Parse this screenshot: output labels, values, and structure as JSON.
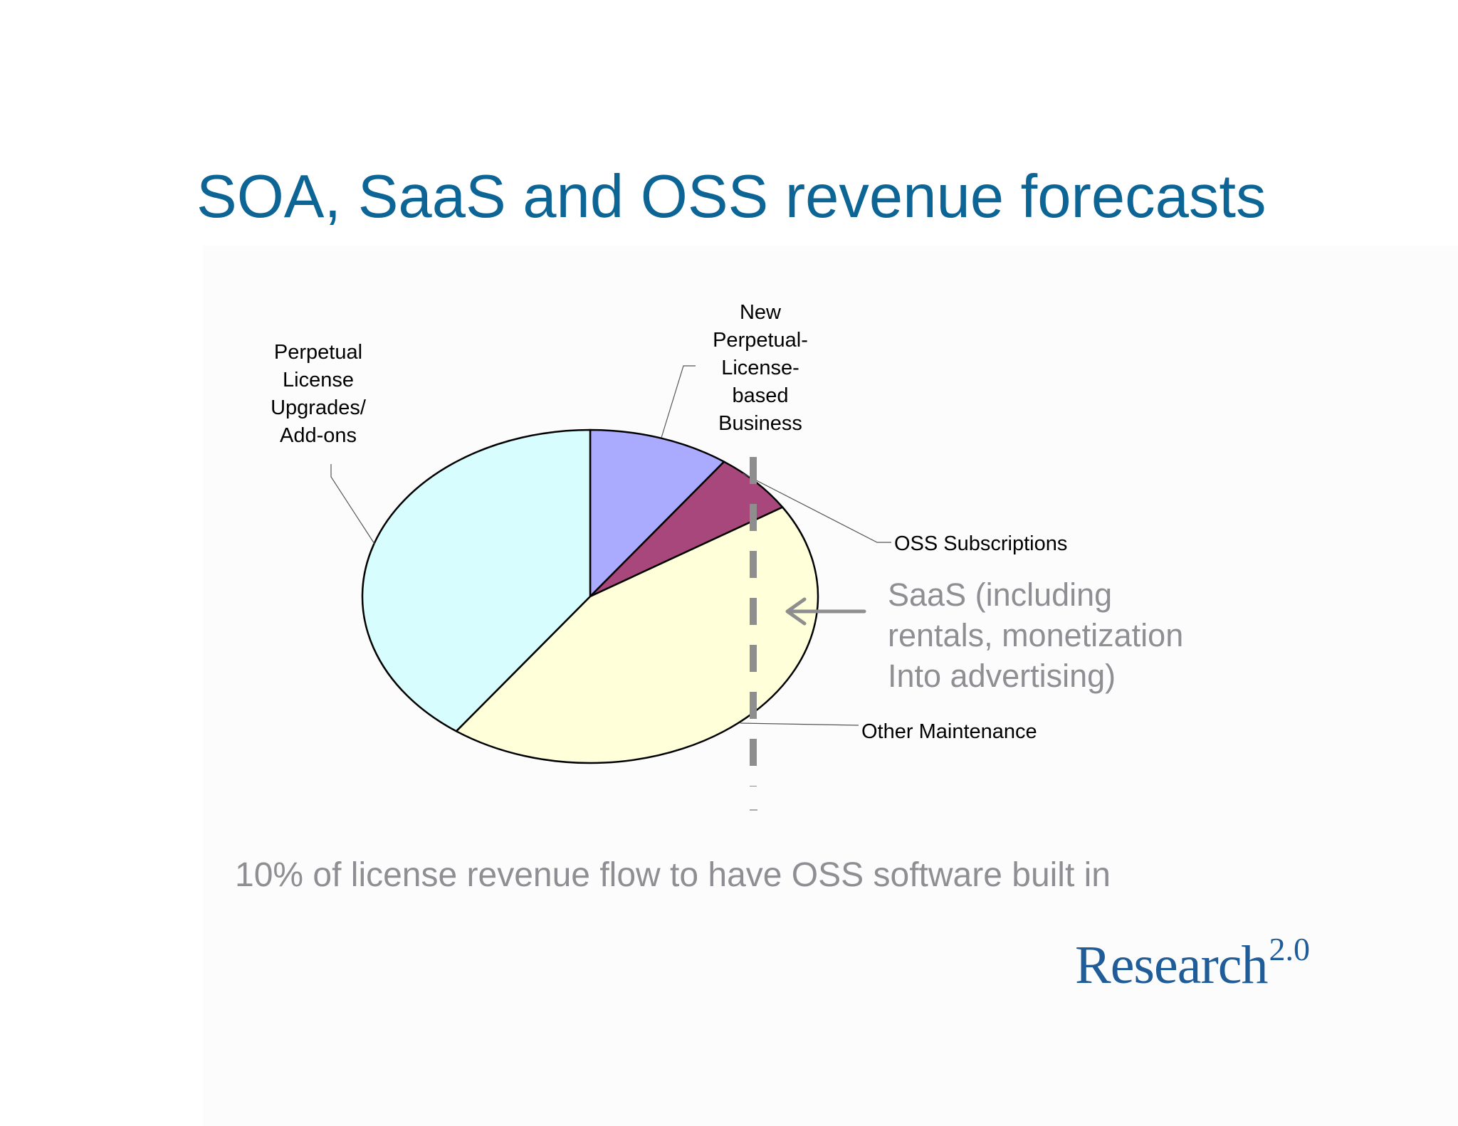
{
  "slide": {
    "title": "SOA, SaaS and OSS revenue forecasts",
    "footnote": "10% of license revenue flow to have OSS software built in",
    "callout": {
      "lines": [
        "SaaS (including",
        "rentals, monetization",
        "Into advertising)"
      ],
      "arrow_icon": "left-arrow-icon"
    },
    "logo": {
      "text": "Research",
      "superscript": "2.0"
    }
  },
  "colors": {
    "title": "#0d6596",
    "gray_text": "#8e8e93",
    "divider": "#8e8e8e",
    "logo": "#1f5c98",
    "outline": "#000000"
  },
  "chart_data": {
    "type": "pie",
    "title": "",
    "start_angle_degrees": 0,
    "direction": "clockwise",
    "slices": [
      {
        "label": "New Perpetual-License-based Business",
        "label_lines": [
          "New",
          "Perpetual-",
          "License-",
          "based",
          "Business"
        ],
        "value": 10,
        "color": "#aaaafe"
      },
      {
        "label": "OSS Subscriptions",
        "label_lines": [
          "OSS Subscriptions"
        ],
        "value": 6,
        "color": "#a8477b"
      },
      {
        "label": "Other Maintenance",
        "label_lines": [
          "Other Maintenance"
        ],
        "value": 44,
        "color": "#ffffd9"
      },
      {
        "label": "Perpetual License Upgrades/ Add-ons",
        "label_lines": [
          "Perpetual",
          "License",
          "Upgrades/",
          "Add-ons"
        ],
        "value": 40,
        "color": "#d7fdfe"
      }
    ]
  }
}
